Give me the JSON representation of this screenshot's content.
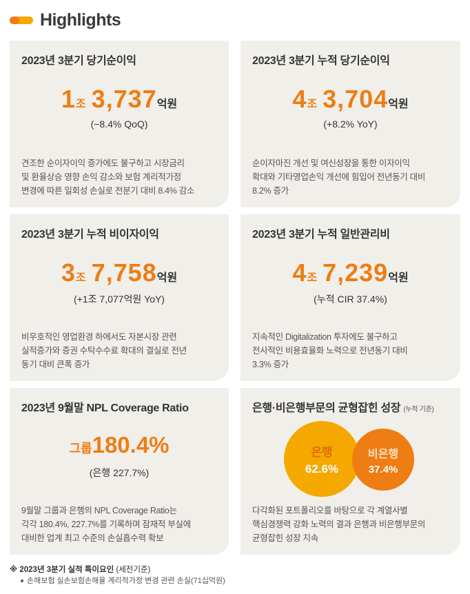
{
  "header": {
    "title": "Highlights"
  },
  "cards": [
    {
      "title": "2023년 3분기 당기순이익",
      "trillion": "1",
      "trillion_unit": "조",
      "value": "3,737",
      "value_unit": "억원",
      "sub": "(−8.4% QoQ)",
      "desc": [
        "견조한 순이자이익 증가에도 불구하고 시장금리",
        "및 환율상승 영향 손익 감소와 보험 계리적가정",
        "변경에 따른 일회성 손실로 전분기 대비 8.4% 감소"
      ]
    },
    {
      "title": "2023년 3분기 누적 당기순이익",
      "trillion": "4",
      "trillion_unit": "조",
      "value": "3,704",
      "value_unit": "억원",
      "sub": "(+8.2% YoY)",
      "desc": [
        "순이자마진 개선 및 여신성장을 통한 이자이익",
        "확대와 기타영업손익 개선에 힘입어 전년동기 대비",
        "8.2% 증가"
      ]
    },
    {
      "title": "2023년 3분기 누적 비이자이익",
      "trillion": "3",
      "trillion_unit": "조",
      "value": "7,758",
      "value_unit": "억원",
      "sub": "(+1조 7,077억원 YoY)",
      "desc": [
        "비우호적인 영업환경 하에서도 자본시장 관련",
        "실적증가와 증권 수탁수수료 확대의 결실로 전년",
        "동기 대비 큰폭 증가"
      ]
    },
    {
      "title": "2023년 3분기 누적 일반관리비",
      "trillion": "4",
      "trillion_unit": "조",
      "value": "7,239",
      "value_unit": "억원",
      "sub": "(누적 CIR 37.4%)",
      "desc": [
        "지속적인 Digitalization 투자에도 불구하고",
        "전사적인 비용효율화 노력으로 전년동기 대비",
        "3.3% 증가"
      ]
    },
    {
      "title": "2023년 9월말 NPL Coverage Ratio",
      "group_label": "그룹",
      "value": "180.4%",
      "sub": "(은행 227.7%)",
      "desc": [
        "9월말 그룹과 은행의 NPL Coverage Ratio는",
        "각각 180.4%, 227.7%를 기록하며 잠재적 부실에",
        "대비한 업계 최고 수준의 손실흡수력 확보"
      ]
    },
    {
      "title": "은행·비은행부문의 균형잡힌 성장",
      "title_sub": "(누적 기준)",
      "bank_label": "은행",
      "bank_value": "62.6%",
      "bank_share": 62.6,
      "nonbank_label": "비은행",
      "nonbank_value": "37.4%",
      "nonbank_share": 37.4,
      "desc": [
        "다각화된 포트폴리오를 바탕으로 각 계열사별",
        "핵심경쟁력 강화 노력의 결과 은행과 비은행부문의",
        "균형잡힌 성장 지속"
      ]
    }
  ],
  "footnote": {
    "title": "※ 2023년 3분기 실적 특이요인",
    "basis": "(세전기준)",
    "item": "손해보험 실손보험손해율 계리적가정 변경 관련 손실(71십억원)"
  },
  "colors": {
    "accent_orange": "#ee7d14",
    "accent_yellow": "#f5a800",
    "card_bg": "#f1efea"
  }
}
